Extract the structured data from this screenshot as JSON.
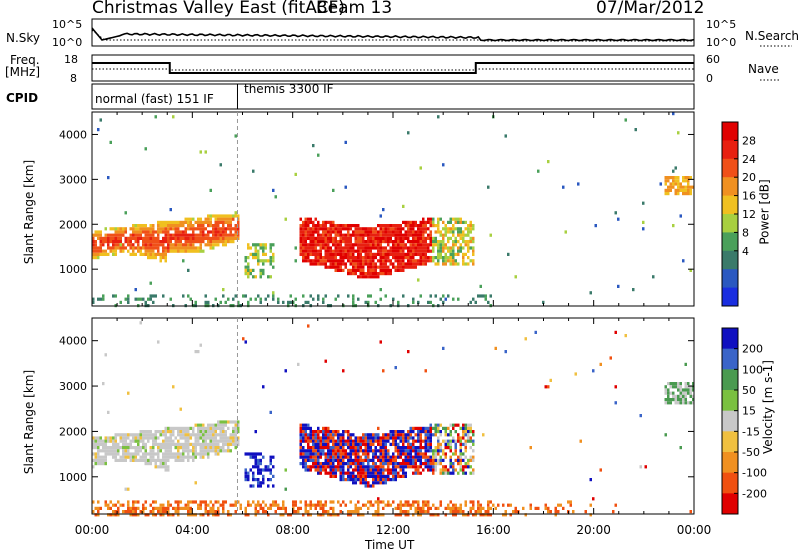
{
  "header": {
    "title": "Christmas Valley East (fitACF)",
    "beam": "Beam 13",
    "date": "07/Mar/2012"
  },
  "noise_panel": {
    "left_label": "N.Sky",
    "right_label": "N.Search",
    "left_ticks": [
      "10^5",
      "10^0"
    ],
    "right_ticks": [
      "10^5",
      "10^0"
    ]
  },
  "freq_panel": {
    "left_label_1": "Freq.",
    "left_label_2": "[MHz]",
    "right_label": "Nave",
    "left_ticks": [
      "18",
      "8"
    ],
    "right_ticks": [
      "60",
      "0"
    ]
  },
  "cpid_panel": {
    "label": "CPID",
    "modes": [
      "normal (fast) 151 IF",
      "themis 3300 IF"
    ]
  },
  "chart_data": [
    {
      "type": "heatmap",
      "name_shown": "Power",
      "ylabel": "Slant Range [km]",
      "xlabel": "Time UT",
      "ylim": [
        180,
        4500
      ],
      "yticks": [
        "1000",
        "2000",
        "3000",
        "4000"
      ],
      "xticks": [
        "00:00",
        "04:00",
        "08:00",
        "12:00",
        "16:00",
        "20:00",
        "00:00"
      ],
      "colorbar": {
        "label": "Power [dB]",
        "ticks": [
          "4",
          "8",
          "12",
          "16",
          "20",
          "24",
          "28"
        ],
        "colors": [
          "#1a2ee0",
          "#2a58c0",
          "#3a7a6a",
          "#4aa05a",
          "#a8d040",
          "#f0c020",
          "#f09020",
          "#f05018",
          "#e82010",
          "#e00000"
        ]
      },
      "features": [
        {
          "t_start": 0.0,
          "t_end": 5.8,
          "range_km": [
            1200,
            2300
          ],
          "level": "medium-high"
        },
        {
          "t_start": 8.2,
          "t_end": 13.5,
          "range_km": [
            800,
            2100
          ],
          "level": "high"
        },
        {
          "t_start": 22.8,
          "t_end": 24.0,
          "range_km": [
            2700,
            3100
          ],
          "level": "medium"
        }
      ]
    },
    {
      "type": "heatmap",
      "name_shown": "Velocity",
      "ylabel": "Slant Range [km]",
      "xlabel": "Time UT",
      "ylim": [
        180,
        4500
      ],
      "yticks": [
        "1000",
        "2000",
        "3000",
        "4000"
      ],
      "xticks": [
        "00:00",
        "04:00",
        "08:00",
        "12:00",
        "16:00",
        "20:00",
        "00:00"
      ],
      "colorbar": {
        "label": "Velocity [m s-1]",
        "ticks": [
          "200",
          "100",
          "50",
          "15",
          "-15",
          "-50",
          "-100",
          "-200"
        ],
        "colors": [
          "#1010c0",
          "#3a64c8",
          "#4a9a50",
          "#7ac040",
          "#c8c8c8",
          "#f0c040",
          "#f09020",
          "#f05010",
          "#e00000"
        ]
      },
      "features": [
        {
          "t_start": 0.0,
          "t_end": 5.8,
          "range_km": [
            1200,
            2300
          ],
          "velocity": "near zero (grey)"
        },
        {
          "t_start": 8.2,
          "t_end": 13.5,
          "range_km": [
            800,
            2100
          ],
          "velocity": "mixed positive/negative"
        },
        {
          "t_start": 0.0,
          "t_end": 24.0,
          "range_km": [
            180,
            500
          ],
          "velocity": "negative (orange)"
        }
      ]
    }
  ]
}
